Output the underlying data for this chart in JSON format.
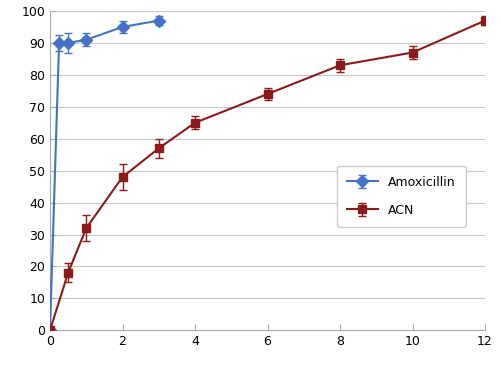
{
  "amox_x": [
    0,
    0.25,
    0.5,
    1,
    2,
    3
  ],
  "amox_y": [
    0,
    90,
    90,
    91,
    95,
    97
  ],
  "amox_yerr": [
    0,
    2.5,
    3,
    2,
    2,
    1.5
  ],
  "acn_x": [
    0,
    0.5,
    1,
    2,
    3,
    4,
    6,
    8,
    10,
    12
  ],
  "acn_y": [
    0,
    18,
    32,
    48,
    57,
    65,
    74,
    83,
    87,
    97
  ],
  "acn_yerr": [
    0,
    3,
    4,
    4,
    3,
    2,
    2,
    2,
    2,
    1.5
  ],
  "amox_color": "#4472C4",
  "acn_color": "#8B1A1A",
  "xlim": [
    0,
    12
  ],
  "ylim": [
    0,
    100
  ],
  "xticks": [
    0,
    2,
    4,
    6,
    8,
    10,
    12
  ],
  "yticks": [
    0,
    10,
    20,
    30,
    40,
    50,
    60,
    70,
    80,
    90,
    100
  ],
  "legend_labels": [
    "Amoxicillin",
    "ACN"
  ],
  "bg_color": "#ffffff",
  "grid_color": "#c8c8c8",
  "spine_color": "#aaaaaa"
}
